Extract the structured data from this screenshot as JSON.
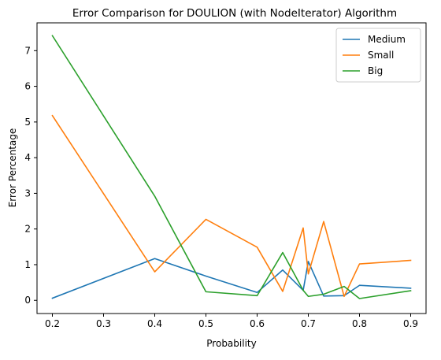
{
  "chart_data": {
    "type": "line",
    "title": "Error Comparison for DOULION (with NodeIterator) Algorithm",
    "xlabel": "Probability",
    "ylabel": "Error Percentage",
    "xlim": [
      0.17,
      0.93
    ],
    "ylim": [
      -0.37,
      7.78
    ],
    "xticks": [
      0.2,
      0.3,
      0.4,
      0.5,
      0.6,
      0.7,
      0.8,
      0.9
    ],
    "xtick_labels": [
      "0.2",
      "0.3",
      "0.4",
      "0.5",
      "0.6",
      "0.7",
      "0.8",
      "0.9"
    ],
    "yticks": [
      0,
      1,
      2,
      3,
      4,
      5,
      6,
      7
    ],
    "ytick_labels": [
      "0",
      "1",
      "2",
      "3",
      "4",
      "5",
      "6",
      "7"
    ],
    "grid": false,
    "legend_position": "top-right",
    "series": [
      {
        "name": "Medium",
        "color": "#1f77b4",
        "x": [
          0.2,
          0.4,
          0.5,
          0.6,
          0.65,
          0.69,
          0.7,
          0.73,
          0.77,
          0.8,
          0.9
        ],
        "y": [
          0.06,
          1.17,
          0.68,
          0.22,
          0.85,
          0.28,
          1.09,
          0.12,
          0.13,
          0.42,
          0.34
        ]
      },
      {
        "name": "Small",
        "color": "#ff7f0e",
        "x": [
          0.2,
          0.4,
          0.5,
          0.6,
          0.65,
          0.69,
          0.7,
          0.73,
          0.77,
          0.8,
          0.9
        ],
        "y": [
          5.18,
          0.8,
          2.27,
          1.49,
          0.25,
          2.03,
          0.74,
          2.21,
          0.11,
          1.02,
          1.12
        ]
      },
      {
        "name": "Big",
        "color": "#2ca02c",
        "x": [
          0.2,
          0.4,
          0.5,
          0.6,
          0.65,
          0.69,
          0.7,
          0.73,
          0.77,
          0.8,
          0.9
        ],
        "y": [
          7.42,
          2.92,
          0.24,
          0.13,
          1.34,
          0.28,
          0.11,
          0.17,
          0.39,
          0.05,
          0.27
        ]
      }
    ]
  }
}
